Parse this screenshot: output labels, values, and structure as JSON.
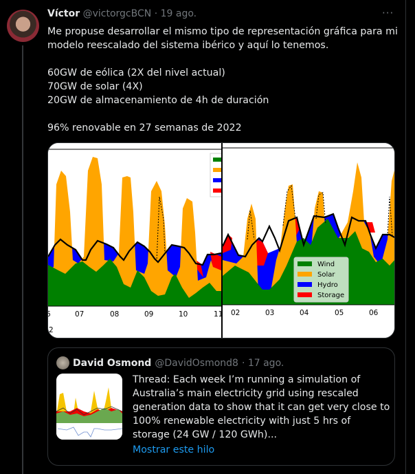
{
  "tweet": {
    "author_name": "Víctor",
    "handle": "@victorgcBCN",
    "date": "· 19 ago.",
    "more_icon": "more-horizontal-icon",
    "text": "Me propuse desarrollar el mismo tipo de representación gráfica para mi modelo reescalado del sistema ibérico y aquí lo tenemos.\n\n60GW de eólica (2X del nivel actual)\n70GW de solar (4X)\n20GW de almacenamiento de 4h de duración\n\n96% renovable en 27 semanas de 2022"
  },
  "media": {
    "left_ticks": [
      "6",
      "07",
      "08",
      "09",
      "10",
      "11"
    ],
    "left_year_fragment": "2",
    "right_ticks": [
      "02",
      "03",
      "04",
      "05",
      "06"
    ],
    "legend": [
      "Wind",
      "Solar",
      "Hydro",
      "Storage"
    ],
    "colors": {
      "wind": "#008000",
      "solar": "#ffa500",
      "hydro": "#0000ff",
      "storage": "#ff0000",
      "demand": "#000000"
    }
  },
  "quote": {
    "author_name": "David Osmond",
    "handle": "@DavidOsmond8",
    "date": "· 17 ago.",
    "text": "Thread: Each week I’m running a simulation of Australia’s main electricity grid using rescaled generation data to show that it can get very close to 100% renewable electricity with just 5 hrs of storage (24 GW / 120 GWh)...",
    "link": "Mostrar este hilo",
    "link_color": "#1d9bf0"
  }
}
